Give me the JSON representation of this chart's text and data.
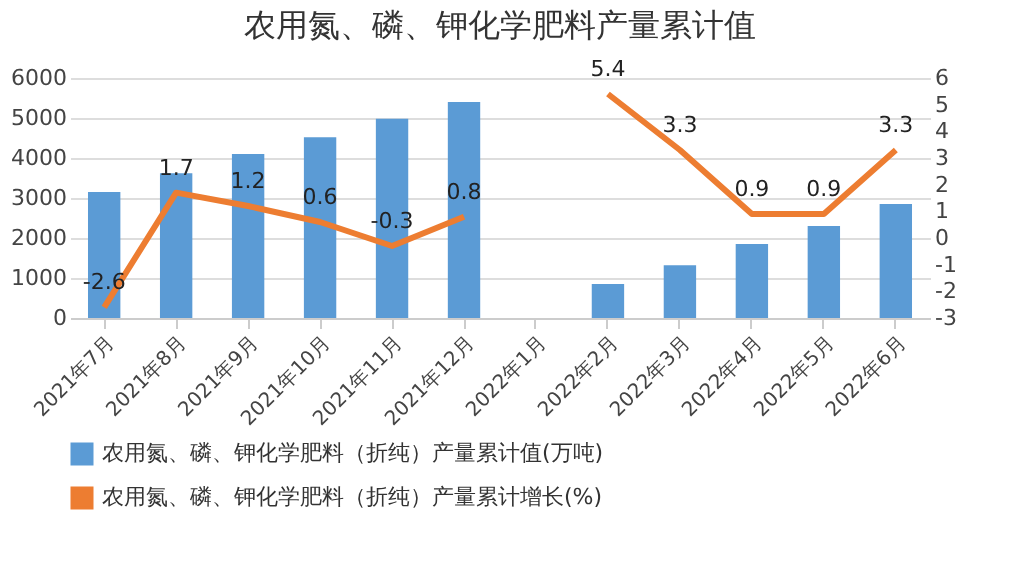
{
  "chart_data": {
    "type": "bar",
    "title": "农用氮、磷、钾化学肥料产量累计值",
    "categories": [
      "2021年7月",
      "2021年8月",
      "2021年9月",
      "2021年10月",
      "2021年11月",
      "2021年12月",
      "2022年1月",
      "2022年2月",
      "2022年3月",
      "2022年4月",
      "2022年5月",
      "2022年6月"
    ],
    "series": [
      {
        "name": "农用氮、磷、钾化学肥料（折纯）产量累计值(万吨)",
        "color": "#5b9bd5",
        "values": [
          3150,
          3620,
          4100,
          4520,
          4980,
          5400,
          null,
          850,
          1320,
          1850,
          2300,
          2850
        ]
      },
      {
        "name": "农用氮、磷、钾化学肥料（折纯）产量累计增长(%)",
        "type": "line",
        "axis": "y2",
        "color": "#ed7d31",
        "values": [
          -2.6,
          1.7,
          1.2,
          0.6,
          -0.3,
          0.8,
          null,
          5.4,
          3.3,
          0.9,
          0.9,
          3.3
        ],
        "value_labels": [
          "-2.6",
          "1.7",
          "1.2",
          "0.6",
          "-0.3",
          "0.8",
          null,
          "5.4",
          "3.3",
          "0.9",
          "0.9",
          "3.3"
        ]
      }
    ],
    "ylim": [
      0,
      6000
    ],
    "yticks": [
      0,
      1000,
      2000,
      3000,
      4000,
      5000,
      6000
    ],
    "y2lim": [
      -3,
      6
    ],
    "y2ticks": [
      -3,
      -2,
      -1,
      0,
      1,
      2,
      3,
      4,
      5,
      6
    ],
    "grid": "y",
    "legend": "bottom"
  }
}
